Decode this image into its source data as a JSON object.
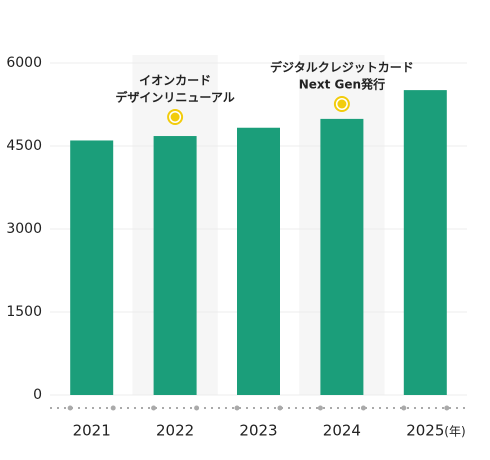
{
  "chart_data": {
    "type": "bar",
    "categories": [
      "2021",
      "2022",
      "2023",
      "2024",
      "2025"
    ],
    "values": [
      4600,
      4680,
      4830,
      4990,
      5510
    ],
    "color": "#1b9e7a",
    "ylim": [
      0,
      6000
    ],
    "yticks": [
      0,
      1500,
      3000,
      4500,
      6000
    ],
    "grid": true,
    "x_unit": "(年)",
    "annotations": [
      null,
      [
        "イオンカード",
        "デザインリニューアル"
      ],
      null,
      [
        "デジタルクレジットカード",
        "Next Gen発行"
      ],
      null
    ]
  }
}
